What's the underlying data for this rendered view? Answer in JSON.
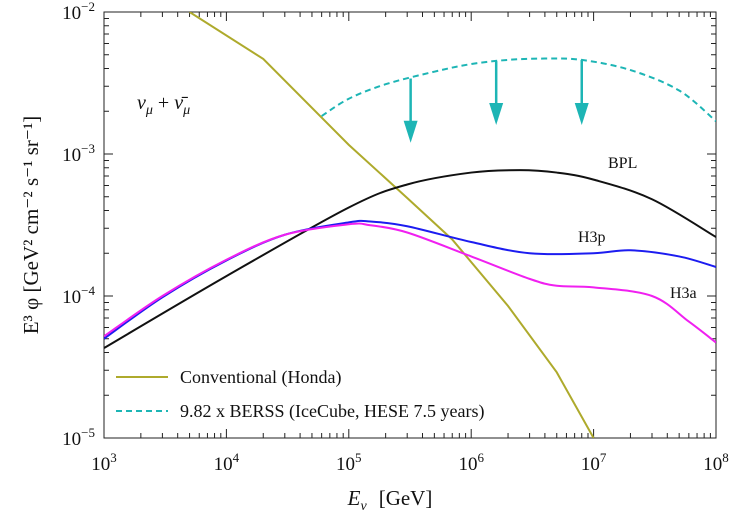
{
  "chart_data": {
    "type": "line",
    "title": "",
    "xlabel": {
      "main": "E",
      "sub": "ν",
      "unit": "[GeV]"
    },
    "ylabel": "E³ φ [GeV² cm⁻² s⁻¹ sr⁻¹]",
    "xscale": "log",
    "yscale": "log",
    "xlim": [
      1000,
      100000000
    ],
    "ylim": [
      1e-05,
      0.01
    ],
    "x_ticks": [
      {
        "base": "10",
        "exp": "3",
        "value": 1000
      },
      {
        "base": "10",
        "exp": "4",
        "value": 10000
      },
      {
        "base": "10",
        "exp": "5",
        "value": 100000
      },
      {
        "base": "10",
        "exp": "6",
        "value": 1000000
      },
      {
        "base": "10",
        "exp": "7",
        "value": 10000000
      },
      {
        "base": "10",
        "exp": "8",
        "value": 100000000
      }
    ],
    "y_ticks": [
      {
        "base": "10",
        "exp": "−5",
        "value": 1e-05
      },
      {
        "base": "10",
        "exp": "−4",
        "value": 0.0001
      },
      {
        "base": "10",
        "exp": "−3",
        "value": 0.001
      },
      {
        "base": "10",
        "exp": "−2",
        "value": 0.01
      }
    ],
    "annotation": "ν_μ + ν̄_μ",
    "legend_position": "bottom-left",
    "series": [
      {
        "name": "Conventional (Honda)",
        "color": "#aeaa2c",
        "style": "solid",
        "x": [
          5000,
          20000,
          100000,
          300000,
          700000,
          2000000,
          5000000,
          10000000
        ],
        "y": [
          0.01,
          0.00467,
          0.00116,
          0.00049,
          0.00025,
          8.5e-05,
          2.9e-05,
          1e-05
        ]
      },
      {
        "name": "9.82 x BERSS (IceCube, HESE 7.5 years)",
        "color": "#1db5b5",
        "style": "dashed",
        "x": [
          60000,
          100000,
          200000,
          500000,
          1000000,
          2000000,
          4000000,
          8000000,
          20000000,
          50000000,
          100000000
        ],
        "y": [
          0.00185,
          0.00245,
          0.0031,
          0.0038,
          0.0043,
          0.0046,
          0.0047,
          0.0046,
          0.0039,
          0.0028,
          0.0017
        ]
      },
      {
        "name": "BPL",
        "label": "BPL",
        "color": "#111111",
        "style": "solid",
        "x": [
          1000,
          10000,
          100000,
          300000,
          1000000,
          2500000,
          5000000,
          10000000,
          30000000,
          100000000
        ],
        "y": [
          4.3e-05,
          0.000138,
          0.00042,
          0.00061,
          0.00074,
          0.00077,
          0.00074,
          0.00066,
          0.00048,
          0.00026
        ]
      },
      {
        "name": "H3p",
        "label": "H3p",
        "color": "#1c1cf0",
        "style": "solid",
        "x": [
          1000,
          3000,
          10000,
          30000,
          100000,
          150000,
          300000,
          1000000,
          3000000,
          10000000,
          20000000,
          50000000,
          100000000
        ],
        "y": [
          5e-05,
          9.8e-05,
          0.000178,
          0.00027,
          0.00033,
          0.000335,
          0.00031,
          0.00024,
          0.0002,
          0.0002,
          0.00021,
          0.00019,
          0.00016
        ]
      },
      {
        "name": "H3a",
        "label": "H3a",
        "color": "#f020f0",
        "style": "solid",
        "x": [
          1000,
          3000,
          10000,
          30000,
          100000,
          150000,
          300000,
          1000000,
          3000000,
          5000000,
          10000000,
          30000000,
          60000000,
          100000000
        ],
        "y": [
          5.2e-05,
          0.0001,
          0.00018,
          0.00027,
          0.00032,
          0.000315,
          0.00028,
          0.00019,
          0.000132,
          0.000118,
          0.000115,
          0.0001,
          6.6e-05,
          4.7e-05
        ]
      }
    ],
    "upper_limit_arrows": {
      "color": "#1db5b5",
      "points": [
        {
          "x": 320000,
          "y_from": 0.0034,
          "y_to": 0.0012
        },
        {
          "x": 1600000,
          "y_from": 0.0045,
          "y_to": 0.0016
        },
        {
          "x": 8000000,
          "y_from": 0.0046,
          "y_to": 0.0016
        }
      ]
    }
  }
}
